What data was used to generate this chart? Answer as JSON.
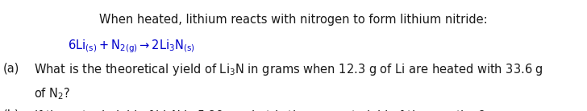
{
  "bg_color": "#ffffff",
  "text_color": "#1a1a1a",
  "reaction_color": "#0000cc",
  "figsize": [
    7.28,
    1.38
  ],
  "dpi": 100,
  "fs": 10.5
}
